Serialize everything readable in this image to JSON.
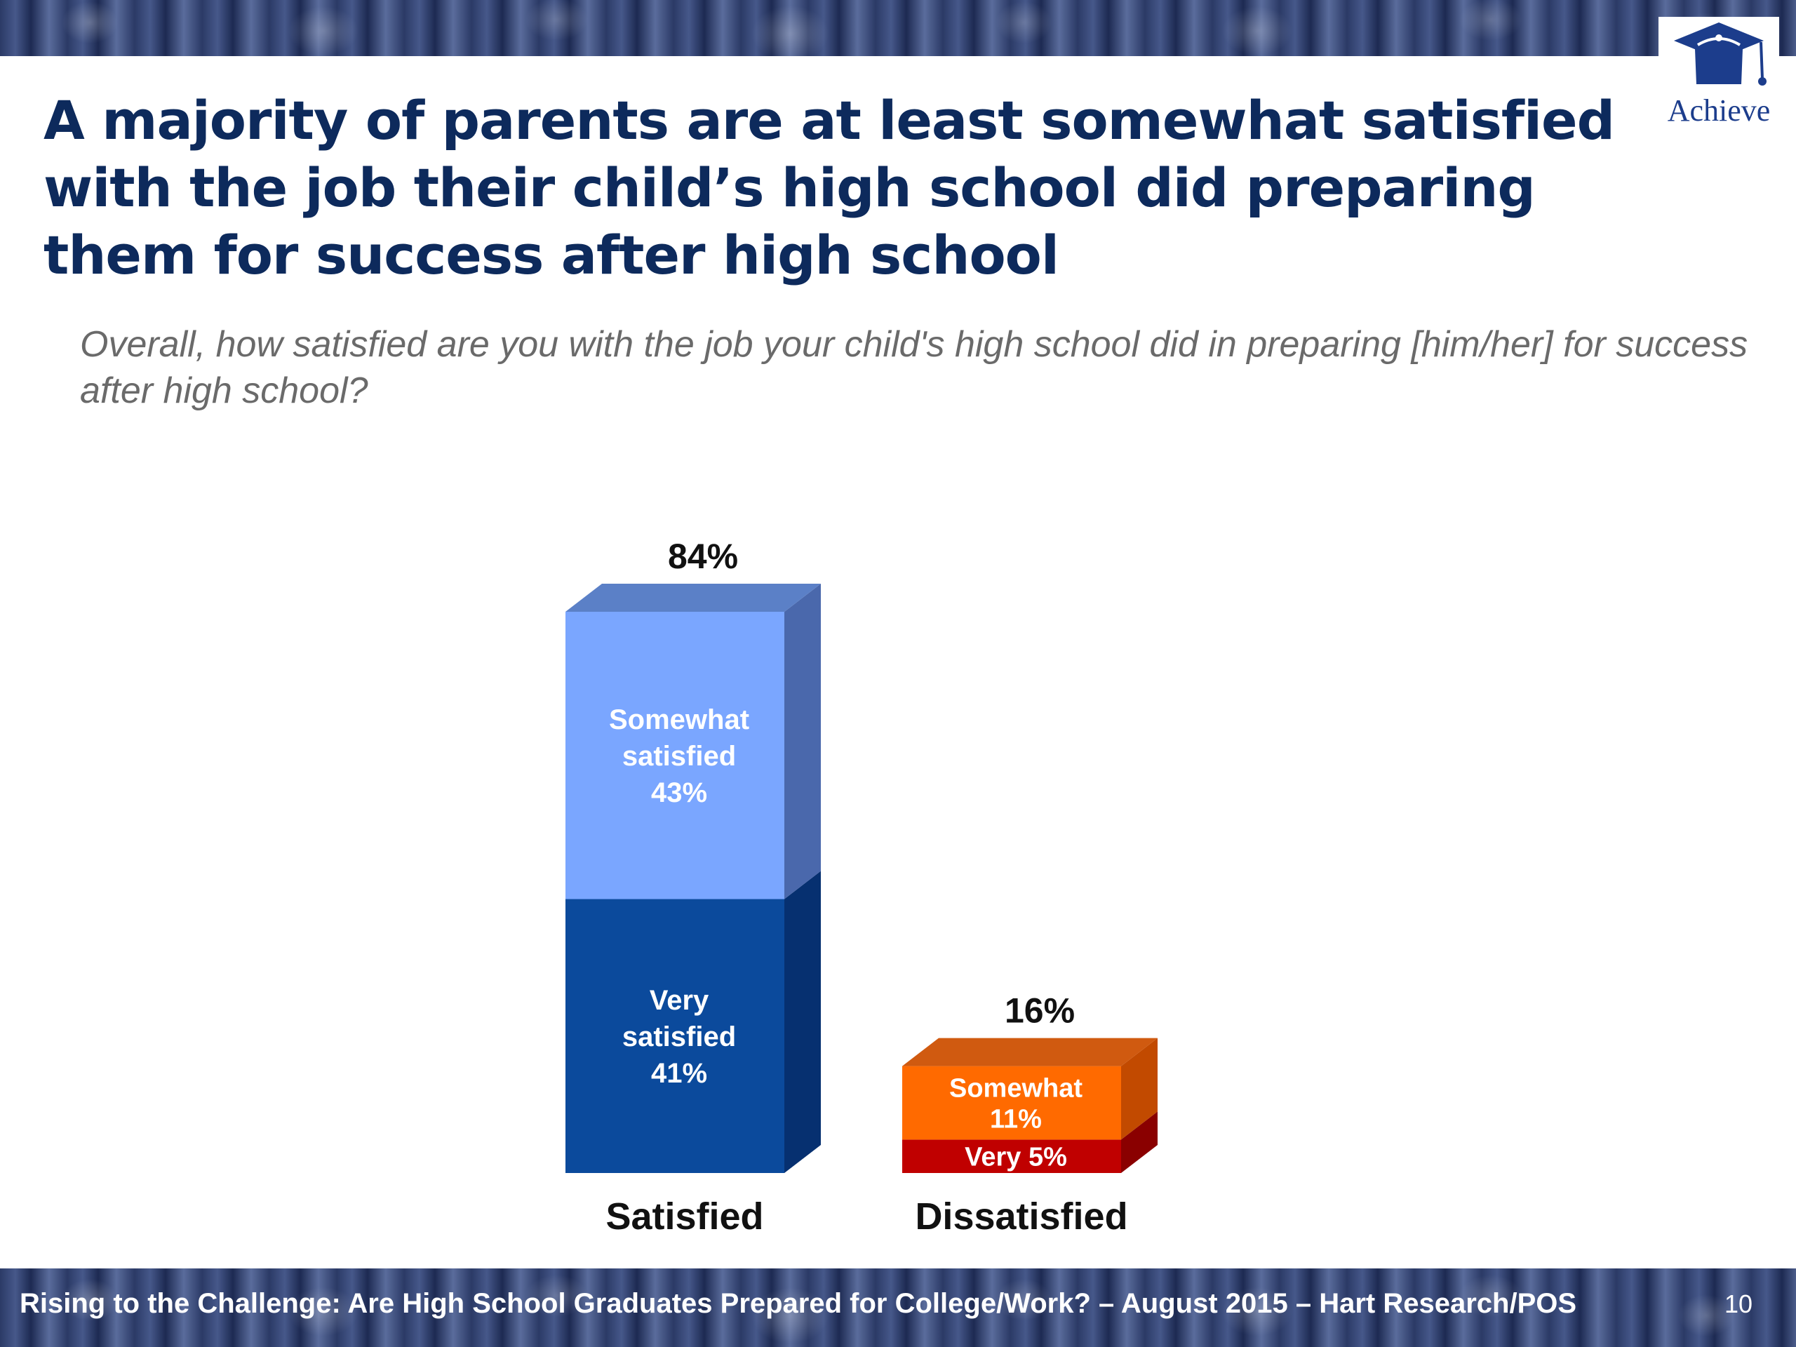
{
  "header": {
    "logo_text": "Achieve",
    "title": "A majority of parents are at least somewhat satisfied with the job their child’s high school did preparing them for success after high school",
    "question": "Overall, how satisfied are you with the job your child's high school did in preparing [him/her] for success after high school?"
  },
  "footer": {
    "source": "Rising to the Challenge:  Are High School Graduates Prepared for College/Work? – August 2015 – Hart Research/POS",
    "page_number": "10"
  },
  "chart_data": {
    "type": "bar",
    "stacked": true,
    "categories": [
      "Satisfied",
      "Dissatisfied"
    ],
    "totals": [
      "84%",
      "16%"
    ],
    "series": [
      {
        "name": "Very",
        "values": [
          41,
          5
        ],
        "labels": [
          "Very\nsatisfied\n41%",
          "Very   5%"
        ],
        "colors": [
          "#0b4a9c",
          "#c00000"
        ],
        "side_colors": [
          "#063070",
          "#8a0000"
        ]
      },
      {
        "name": "Somewhat",
        "values": [
          43,
          11
        ],
        "labels": [
          "Somewhat\nsatisfied\n43%",
          "Somewhat\n11%"
        ],
        "colors": [
          "#7aa6ff",
          "#ff6a00"
        ],
        "side_colors": [
          "#4a68ac",
          "#c24a00"
        ]
      }
    ],
    "top_colors": [
      "#5b80c7",
      "#d05a10"
    ],
    "ylim": [
      0,
      84
    ],
    "unit": "%"
  }
}
